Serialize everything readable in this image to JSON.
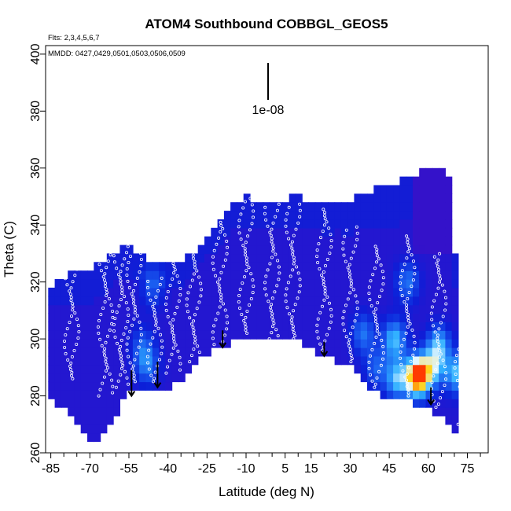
{
  "chart_data": {
    "type": "heatmap",
    "title": "ATOM4 Southbound COBBGL_GEOS5",
    "subtitle_flights": "Flts: 2,3,4,5,6,7",
    "subtitle_dates": "MMDD: 0427,0429,0501,0503,0506,0509",
    "xlabel": "Latitude (deg N)",
    "ylabel": "Theta (C)",
    "xlim": [
      -87,
      83
    ],
    "ylim": [
      260,
      403
    ],
    "x_ticks": [
      -85,
      -70,
      -55,
      -40,
      -25,
      -10,
      5,
      15,
      30,
      45,
      60,
      75
    ],
    "x_tick_labels": [
      "-85",
      "-70",
      "-55",
      "-40",
      "-25",
      "-10",
      "5",
      "15",
      "30",
      "45",
      "60",
      "75"
    ],
    "y_ticks": [
      260,
      280,
      300,
      320,
      340,
      360,
      380,
      400
    ],
    "y_tick_labels": [
      "260",
      "280",
      "300",
      "320",
      "340",
      "360",
      "380",
      "400"
    ],
    "scale_bar_label": "1e-08",
    "colormap": [
      "#3a10c8",
      "#0b1fd8",
      "#1a5cf0",
      "#2fb0ff",
      "#e0f6ff",
      "#ffd21a",
      "#ff3b00"
    ],
    "upper_envelope": [
      [
        -86,
        318
      ],
      [
        -80,
        322
      ],
      [
        -75,
        324
      ],
      [
        -70,
        325
      ],
      [
        -65,
        328
      ],
      [
        -60,
        331
      ],
      [
        -55,
        332
      ],
      [
        -50,
        330
      ],
      [
        -45,
        327
      ],
      [
        -40,
        326
      ],
      [
        -35,
        327
      ],
      [
        -30,
        331
      ],
      [
        -25,
        337
      ],
      [
        -20,
        342
      ],
      [
        -15,
        347
      ],
      [
        -10,
        350
      ],
      [
        -5,
        349
      ],
      [
        0,
        348
      ],
      [
        5,
        349
      ],
      [
        10,
        350
      ],
      [
        15,
        349
      ],
      [
        20,
        348
      ],
      [
        25,
        349
      ],
      [
        30,
        349
      ],
      [
        35,
        351
      ],
      [
        40,
        353
      ],
      [
        45,
        354
      ],
      [
        50,
        356
      ],
      [
        55,
        358
      ],
      [
        60,
        359
      ],
      [
        63,
        361
      ],
      [
        67,
        361
      ],
      [
        70,
        340
      ],
      [
        72,
        265
      ]
    ],
    "lower_envelope": [
      [
        -86,
        279
      ],
      [
        -80,
        276
      ],
      [
        -75,
        270
      ],
      [
        -70,
        264
      ],
      [
        -65,
        266
      ],
      [
        -60,
        274
      ],
      [
        -55,
        281
      ],
      [
        -50,
        283
      ],
      [
        -45,
        283
      ],
      [
        -40,
        283
      ],
      [
        -35,
        286
      ],
      [
        -30,
        291
      ],
      [
        -25,
        294
      ],
      [
        -20,
        297
      ],
      [
        -15,
        299
      ],
      [
        -10,
        301
      ],
      [
        -5,
        300
      ],
      [
        0,
        299
      ],
      [
        5,
        300
      ],
      [
        10,
        299
      ],
      [
        15,
        297
      ],
      [
        20,
        294
      ],
      [
        25,
        292
      ],
      [
        30,
        290
      ],
      [
        35,
        285
      ],
      [
        40,
        281
      ],
      [
        45,
        278
      ],
      [
        50,
        279
      ],
      [
        55,
        277
      ],
      [
        60,
        275
      ],
      [
        65,
        272
      ],
      [
        70,
        268
      ],
      [
        72,
        265
      ]
    ],
    "hotspots": [
      {
        "lat": 56,
        "theta": 287,
        "value": 1.0
      },
      {
        "lat": 48,
        "theta": 286,
        "value": 0.45
      },
      {
        "lat": 62,
        "theta": 290,
        "value": 0.4
      },
      {
        "lat": 47,
        "theta": 300,
        "value": 0.45
      },
      {
        "lat": 64,
        "theta": 298,
        "value": 0.4
      },
      {
        "lat": 71,
        "theta": 288,
        "value": 0.45
      },
      {
        "lat": 35,
        "theta": 302,
        "value": 0.3
      },
      {
        "lat": 40,
        "theta": 290,
        "value": 0.25
      },
      {
        "lat": 52,
        "theta": 320,
        "value": 0.3
      },
      {
        "lat": -48,
        "theta": 291,
        "value": 0.3
      },
      {
        "lat": -50,
        "theta": 298,
        "value": 0.2
      },
      {
        "lat": -46,
        "theta": 318,
        "value": 0.22
      }
    ],
    "flight_tracks": [
      {
        "lat": -77,
        "theta_min": 286,
        "theta_max": 324
      },
      {
        "lat": -64,
        "theta_min": 280,
        "theta_max": 331
      },
      {
        "lat": -58,
        "theta_min": 283,
        "theta_max": 333
      },
      {
        "lat": -53,
        "theta_min": 285,
        "theta_max": 330
      },
      {
        "lat": -45,
        "theta_min": 285,
        "theta_max": 322
      },
      {
        "lat": -38,
        "theta_min": 288,
        "theta_max": 326
      },
      {
        "lat": -30,
        "theta_min": 292,
        "theta_max": 331
      },
      {
        "lat": -20,
        "theta_min": 298,
        "theta_max": 341
      },
      {
        "lat": -10,
        "theta_min": 302,
        "theta_max": 350
      },
      {
        "lat": 0,
        "theta_min": 300,
        "theta_max": 347
      },
      {
        "lat": 8,
        "theta_min": 300,
        "theta_max": 347
      },
      {
        "lat": 20,
        "theta_min": 296,
        "theta_max": 346
      },
      {
        "lat": 30,
        "theta_min": 292,
        "theta_max": 340
      },
      {
        "lat": 40,
        "theta_min": 283,
        "theta_max": 333
      },
      {
        "lat": 52,
        "theta_min": 280,
        "theta_max": 336
      },
      {
        "lat": 64,
        "theta_min": 276,
        "theta_max": 330
      },
      {
        "lat": 73,
        "theta_min": 270,
        "theta_max": 300
      }
    ],
    "arrows": [
      {
        "lat": -54,
        "theta_top": 289,
        "theta_bottom": 280
      },
      {
        "lat": -44,
        "theta_top": 292,
        "theta_bottom": 283
      },
      {
        "lat": -19,
        "theta_top": 303,
        "theta_bottom": 297
      },
      {
        "lat": 20,
        "theta_top": 299,
        "theta_bottom": 294
      },
      {
        "lat": 61,
        "theta_top": 283,
        "theta_bottom": 277
      }
    ]
  }
}
